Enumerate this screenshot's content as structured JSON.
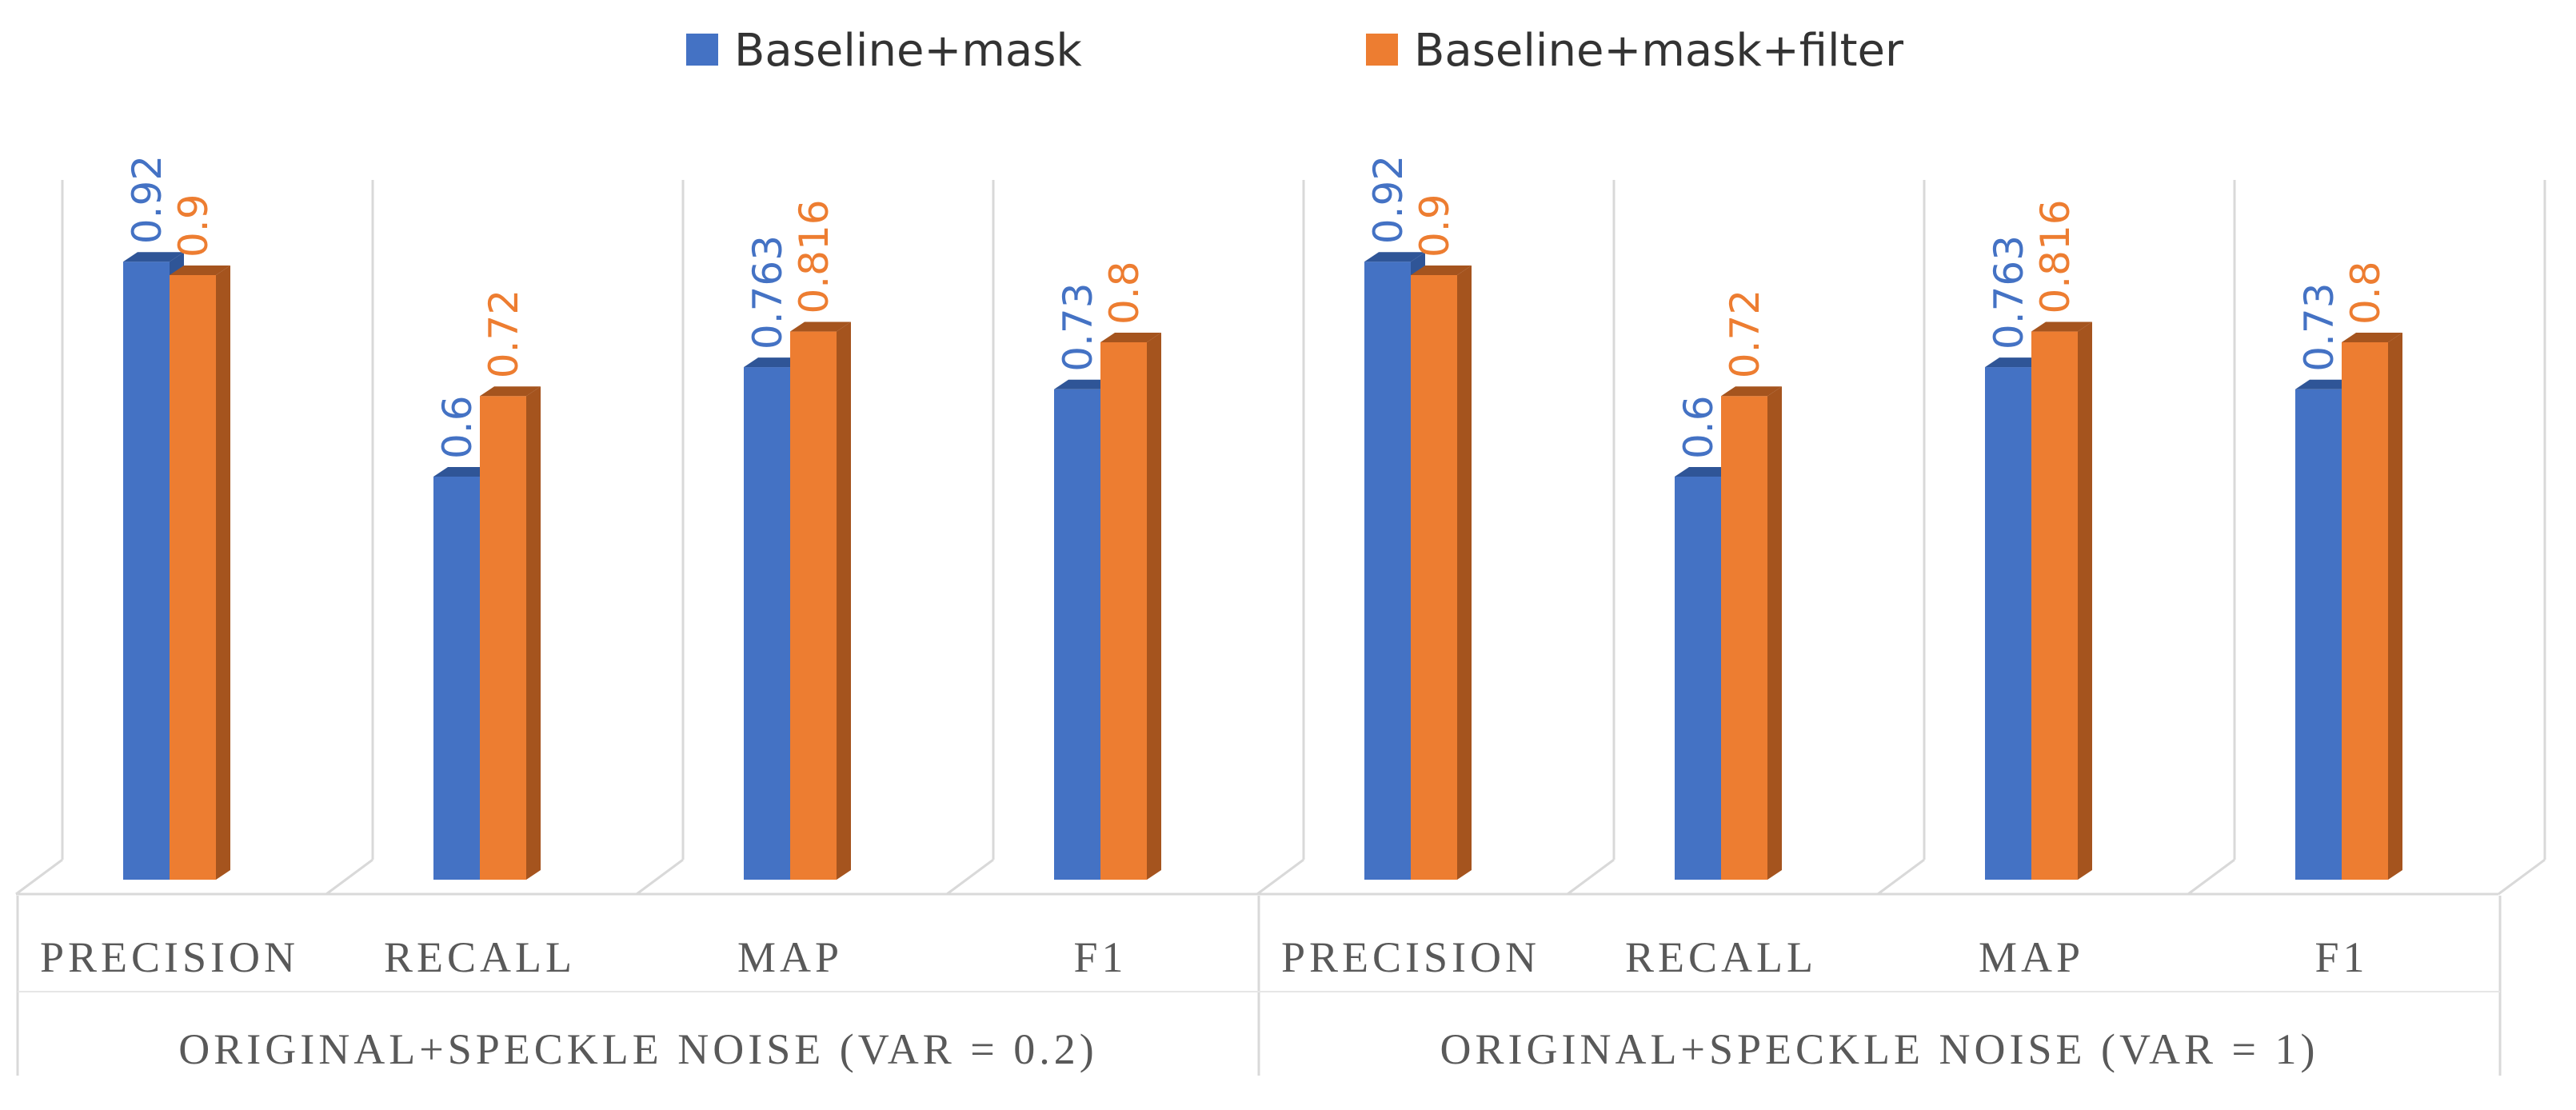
{
  "chart_data": {
    "type": "bar",
    "style": "3d-clustered-column",
    "groups": [
      {
        "label": "ORIGINAL+SPECKLE NOISE (VAR = 0.2)",
        "categories": [
          "PRECISION",
          "RECALL",
          "MAP",
          "F1"
        ]
      },
      {
        "label": "ORIGINAL+SPECKLE NOISE (VAR = 1)",
        "categories": [
          "PRECISION",
          "RECALL",
          "MAP",
          "F1"
        ]
      }
    ],
    "series": [
      {
        "name": "Baseline+mask",
        "color": "#4472C4",
        "side_color": "#2F5597",
        "values": [
          0.92,
          0.6,
          0.763,
          0.73,
          0.92,
          0.6,
          0.763,
          0.73
        ]
      },
      {
        "name": "Baseline+mask+filter",
        "color": "#ED7D31",
        "side_color": "#A5541E",
        "values": [
          0.9,
          0.72,
          0.816,
          0.8,
          0.9,
          0.72,
          0.816,
          0.8
        ]
      }
    ],
    "value_labels": [
      [
        "0.92",
        "0.6",
        "0.763",
        "0.73",
        "0.92",
        "0.6",
        "0.763",
        "0.73"
      ],
      [
        "0.9",
        "0.72",
        "0.816",
        "0.8",
        "0.9",
        "0.72",
        "0.816",
        "0.8"
      ]
    ],
    "ylim": [
      0,
      1
    ],
    "legend_position": "top",
    "grid": true
  }
}
